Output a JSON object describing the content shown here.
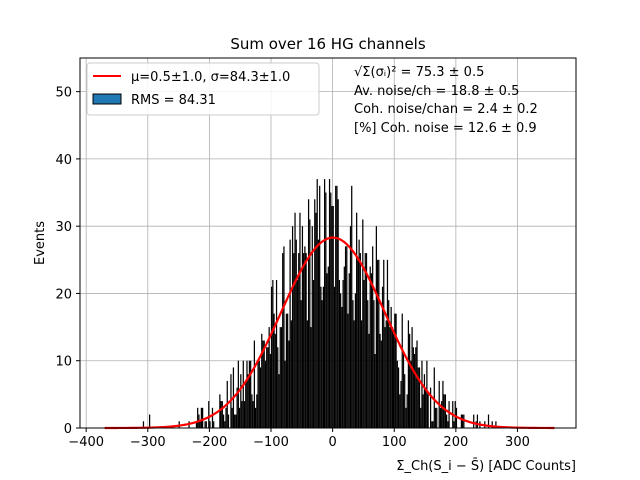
{
  "chart_data": {
    "type": "bar",
    "title": "Sum over 16 HG channels",
    "xlabel": "Σ_Ch(S_i − S̄) [ADC Counts]",
    "ylabel": "Events",
    "xlim": [
      -410,
      395
    ],
    "ylim": [
      0,
      55
    ],
    "xticks": [
      -400,
      -300,
      -200,
      -100,
      0,
      100,
      200,
      300
    ],
    "yticks": [
      0,
      10,
      20,
      30,
      40,
      50
    ],
    "grid": true,
    "legend_position": "upper-left",
    "legend": [
      {
        "label": "μ=0.5±1.0, σ=84.3±1.0",
        "kind": "line",
        "color": "#ff0000"
      },
      {
        "label": "RMS = 84.31",
        "kind": "patch",
        "color": "#1f77b4"
      }
    ],
    "annotations": [
      "√Σ(σᵢ)² = 75.3 ± 0.5",
      "Av. noise/ch = 18.8 ± 0.5",
      "Coh. noise/chan = 2.4 ± 0.2",
      "[%] Coh. noise = 12.6 ± 0.9"
    ],
    "histogram": {
      "color": "#000000",
      "bin_width": 2,
      "x_range": [
        -370,
        360
      ],
      "approx_peak": 42
    },
    "fit": {
      "color": "#ff0000",
      "mu": 0.5,
      "sigma": 84.3,
      "amplitude": 28.3,
      "x_range": [
        -370,
        360
      ]
    }
  }
}
